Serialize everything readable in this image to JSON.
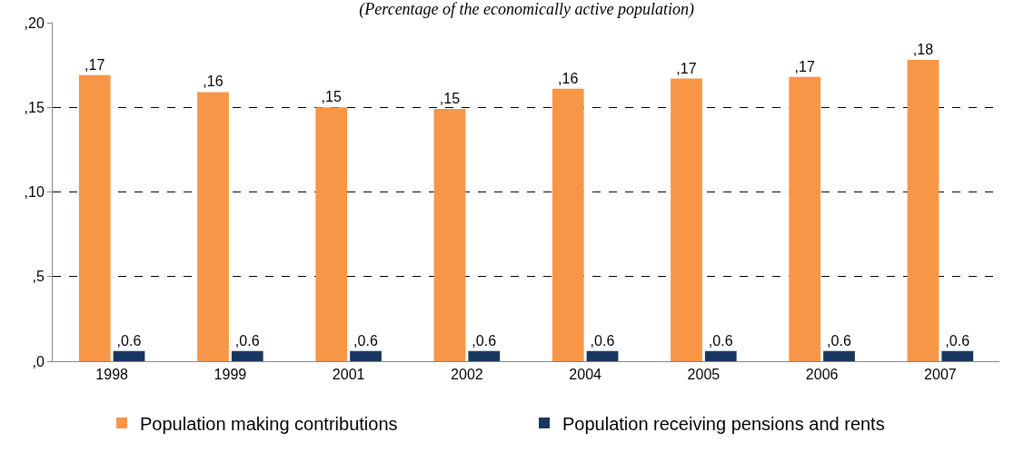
{
  "chart_data": {
    "type": "bar",
    "subtitle": "(Percentage of the economically active population)",
    "categories": [
      "1998",
      "1999",
      "2001",
      "2002",
      "2004",
      "2005",
      "2006",
      "2007"
    ],
    "series": [
      {
        "name": "Population making contributions",
        "color": "#f79646",
        "values": [
          16.9,
          15.9,
          15.0,
          14.9,
          16.1,
          16.7,
          16.8,
          17.8
        ],
        "value_labels": [
          ",17",
          ",16",
          ",15",
          ",15",
          ",16",
          ",17",
          ",17",
          ",18"
        ]
      },
      {
        "name": "Population receiving pensions and rents",
        "color": "#17375e",
        "values": [
          0.6,
          0.6,
          0.6,
          0.6,
          0.6,
          0.6,
          0.6,
          0.6
        ],
        "value_labels": [
          ",0.6",
          ",0.6",
          ",0.6",
          ",0.6",
          ",0.6",
          ",0.6",
          ",0.6",
          ",0.6"
        ]
      }
    ],
    "ylim": [
      0,
      20
    ],
    "yticks": [
      {
        "value": 0,
        "label": ",0"
      },
      {
        "value": 5,
        "label": ",5"
      },
      {
        "value": 10,
        "label": ",10"
      },
      {
        "value": 15,
        "label": ",15"
      },
      {
        "value": 20,
        "label": ",20"
      }
    ],
    "grid": "y",
    "legend": "bottom"
  }
}
